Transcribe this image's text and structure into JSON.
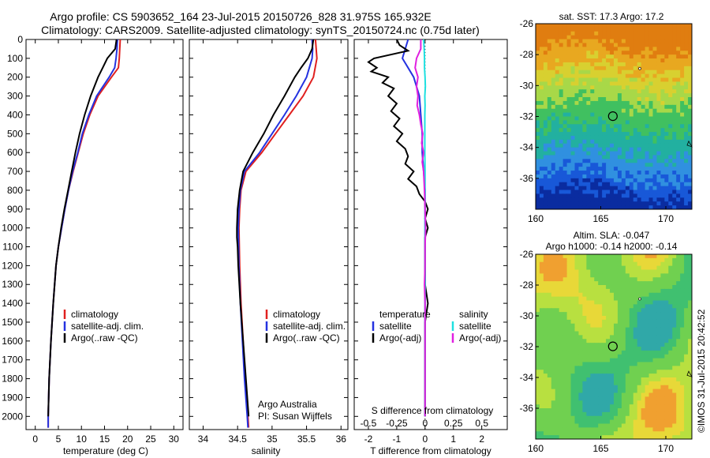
{
  "header": {
    "line1": "Argo profile: CS 5903652_164 23-Jul-2015 20150726_828 31.975S 165.932E",
    "line2": "Climatology: CARS2009. Satellite-adjusted climatology: synTS_20150724.nc (0.75d later)"
  },
  "credit": "©IMOS 31-Jul-2015 20:42:52",
  "colors": {
    "climatology": "#e0201f",
    "satellite": "#2432e0",
    "argo": "#000000",
    "sal_satellite": "#1ee0e0",
    "sal_argo": "#e020e0"
  },
  "chart_data": [
    {
      "type": "line",
      "id": "temperature-profile",
      "xlabel": "temperature (deg C)",
      "xticks": [
        0,
        5,
        10,
        15,
        20,
        25,
        30
      ],
      "xlim": [
        -2,
        32
      ],
      "yticks": [
        0,
        100,
        200,
        300,
        400,
        500,
        600,
        700,
        800,
        900,
        1000,
        1100,
        1200,
        1300,
        1400,
        1500,
        1600,
        1700,
        1800,
        1900,
        2000
      ],
      "ylim": [
        0,
        2070
      ],
      "y_reversed": true,
      "legend": [
        "climatology",
        "satellite-adj. clim.",
        "Argo(..raw -QC)"
      ],
      "series": [
        {
          "name": "climatology",
          "depth": [
            0,
            50,
            100,
            150,
            200,
            300,
            400,
            500,
            600,
            700,
            800,
            900,
            1000,
            1100,
            1200,
            1400,
            1600,
            1800,
            2000,
            2060
          ],
          "values": [
            18.4,
            18.3,
            18.2,
            18.0,
            16.5,
            13.6,
            11.8,
            10.4,
            9.3,
            8.2,
            7.2,
            6.4,
            5.7,
            5.0,
            4.5,
            3.9,
            3.4,
            3.0,
            2.8,
            2.8
          ]
        },
        {
          "name": "satellite-adj. clim.",
          "depth": [
            0,
            50,
            100,
            150,
            200,
            300,
            400,
            500,
            600,
            700,
            800,
            900,
            1000,
            1100,
            1200,
            1400,
            1600,
            1800,
            2000,
            2060
          ],
          "values": [
            17.8,
            17.7,
            17.5,
            17.2,
            16.0,
            13.3,
            11.6,
            10.2,
            9.2,
            8.1,
            7.2,
            6.4,
            5.7,
            5.0,
            4.5,
            3.9,
            3.4,
            3.0,
            2.8,
            2.8
          ]
        },
        {
          "name": "Argo(..raw -QC)",
          "depth": [
            0,
            50,
            100,
            150,
            200,
            300,
            400,
            500,
            600,
            700,
            800,
            900,
            1000,
            1100,
            1200,
            1400,
            1600,
            1800,
            2000
          ],
          "values": [
            17.6,
            17.3,
            15.6,
            14.6,
            13.6,
            12.0,
            10.7,
            9.6,
            8.7,
            7.9,
            7.1,
            6.3,
            5.6,
            5.0,
            4.5,
            3.9,
            3.4,
            3.0,
            2.8
          ]
        }
      ]
    },
    {
      "type": "line",
      "id": "salinity-profile",
      "xlabel": "salinity",
      "xticks": [
        34,
        34.5,
        35,
        35.5,
        36
      ],
      "xlim": [
        33.8,
        36.1
      ],
      "yticks": [
        0,
        100,
        200,
        300,
        400,
        500,
        600,
        700,
        800,
        900,
        1000,
        1100,
        1200,
        1300,
        1400,
        1500,
        1600,
        1700,
        1800,
        1900,
        2000
      ],
      "ylim": [
        0,
        2070
      ],
      "y_reversed": true,
      "legend": [
        "climatology",
        "satellite-adj. clim.",
        "Argo(..raw -QC)"
      ],
      "annotation": [
        "Argo Australia",
        "PI: Susan Wijffels"
      ],
      "series": [
        {
          "name": "climatology",
          "depth": [
            0,
            50,
            100,
            200,
            300,
            400,
            500,
            600,
            700,
            800,
            900,
            1000,
            1200,
            1400,
            1600,
            1800,
            2000,
            2060
          ],
          "values": [
            35.63,
            35.64,
            35.65,
            35.6,
            35.45,
            35.25,
            35.05,
            34.85,
            34.62,
            34.55,
            34.53,
            34.52,
            34.53,
            34.55,
            34.58,
            34.61,
            34.65,
            34.66
          ]
        },
        {
          "name": "satellite-adj. clim.",
          "depth": [
            0,
            50,
            100,
            200,
            300,
            400,
            500,
            600,
            700,
            800,
            900,
            1000,
            1200,
            1400,
            1600,
            1800,
            2000,
            2060
          ],
          "values": [
            35.58,
            35.59,
            35.58,
            35.5,
            35.35,
            35.18,
            35.0,
            34.82,
            34.6,
            34.54,
            34.52,
            34.51,
            34.52,
            34.54,
            34.57,
            34.6,
            34.64,
            34.65
          ]
        },
        {
          "name": "Argo(..raw -QC)",
          "depth": [
            0,
            50,
            100,
            150,
            200,
            300,
            400,
            500,
            600,
            700,
            800,
            900,
            1000,
            1050,
            1100,
            1200,
            1400,
            1600,
            1800,
            2000
          ],
          "values": [
            35.6,
            35.58,
            35.52,
            35.42,
            35.33,
            35.18,
            35.02,
            34.88,
            34.72,
            34.58,
            34.53,
            34.5,
            34.49,
            34.49,
            34.5,
            34.51,
            34.54,
            34.58,
            34.62,
            34.66
          ]
        }
      ]
    },
    {
      "type": "line",
      "id": "difference-profile",
      "xlabel": "T difference from climatology",
      "xlabel2": "S difference from climatology",
      "xticks": [
        -2,
        -1,
        0,
        1,
        2
      ],
      "xticks_top": [
        -0.5,
        -0.25,
        0,
        0.25,
        0.5
      ],
      "xlim": [
        -2.5,
        2.9
      ],
      "yticks": [
        0,
        100,
        200,
        300,
        400,
        500,
        600,
        700,
        800,
        900,
        1000,
        1100,
        1200,
        1300,
        1400,
        1500,
        1600,
        1700,
        1800,
        1900,
        2000
      ],
      "ylim": [
        0,
        2070
      ],
      "y_reversed": true,
      "legend_title_temperature": "temperature",
      "legend_title_salinity": "salinity",
      "legend": [
        "satellite",
        "Argo(-adj)",
        "satellite",
        "Argo(-adj)"
      ],
      "series": [
        {
          "name": "satellite",
          "depth": [
            0,
            50,
            100,
            150,
            200,
            300,
            400,
            500,
            600,
            700,
            800,
            900,
            1000,
            1200,
            1400,
            1600,
            1800,
            2000
          ],
          "values": [
            -0.6,
            -0.7,
            -0.8,
            -0.6,
            -0.4,
            -0.2,
            -0.15,
            -0.1,
            -0.1,
            -0.05,
            0,
            0,
            0,
            0,
            0,
            0,
            0,
            0
          ]
        },
        {
          "name": "Argo(-adj)",
          "depth": [
            0,
            30,
            60,
            100,
            120,
            150,
            170,
            200,
            230,
            260,
            300,
            340,
            380,
            420,
            460,
            500,
            540,
            580,
            620,
            660,
            700,
            740,
            780,
            820,
            860,
            900,
            950,
            1000,
            1050,
            1100,
            1200,
            1300,
            1400,
            1500,
            1600,
            1800,
            2000
          ],
          "values": [
            -1.0,
            -0.9,
            -0.6,
            -1.8,
            -2.0,
            -1.7,
            -1.9,
            -1.3,
            -1.5,
            -1.1,
            -1.3,
            -1.0,
            -1.2,
            -0.9,
            -1.1,
            -0.8,
            -1.0,
            -0.7,
            -0.6,
            -0.7,
            -0.4,
            -0.6,
            -0.3,
            -0.2,
            0,
            0.1,
            0,
            0.1,
            0,
            0,
            0,
            0,
            0.1,
            0,
            0,
            0,
            0
          ]
        },
        {
          "name": "satellite (salinity)",
          "depth": [
            0,
            50,
            100,
            150,
            200,
            250,
            300,
            350,
            400,
            450,
            500,
            600,
            700,
            800,
            900,
            1000,
            1200,
            1400,
            1600,
            1800,
            2000
          ],
          "values": [
            -0.05,
            -0.03,
            -0.02,
            -0.02,
            0,
            0.01,
            -0.01,
            0,
            -0.01,
            -0.01,
            -0.01,
            -0.01,
            0,
            0,
            0,
            0,
            0,
            0,
            0,
            0,
            0
          ]
        },
        {
          "name": "Argo(-adj) (salinity)",
          "depth": [
            0,
            50,
            100,
            150,
            200,
            250,
            300,
            350,
            400,
            450,
            500,
            550,
            600,
            650,
            700,
            800,
            900,
            1000,
            1100,
            1200,
            1300,
            1400,
            1600,
            1800,
            2000
          ],
          "values": [
            -0.15,
            -0.15,
            -0.3,
            -0.35,
            -0.25,
            -0.3,
            -0.25,
            -0.28,
            -0.2,
            -0.15,
            -0.08,
            -0.12,
            -0.05,
            -0.1,
            -0.05,
            -0.02,
            0,
            0.02,
            0,
            0,
            -0.02,
            0,
            0,
            0,
            0
          ]
        }
      ]
    },
    {
      "type": "heatmap",
      "id": "sst-map",
      "title": "sat. SST: 17.3 Argo: 17.2",
      "xticks": [
        160,
        165,
        170
      ],
      "yticks": [
        -26,
        -28,
        -30,
        -32,
        -34,
        -36
      ],
      "xlim": [
        160,
        172
      ],
      "ylim": [
        -38,
        -26
      ],
      "argo_position": [
        165.93,
        -31.98
      ]
    },
    {
      "type": "heatmap",
      "id": "sla-map",
      "title": "Altim. SLA: -0.047",
      "subtitle": "Argo h1000: -0.14 h2000: -0.14",
      "xticks": [
        160,
        165,
        170
      ],
      "yticks": [
        -26,
        -28,
        -30,
        -32,
        -34,
        -36
      ],
      "xlim": [
        160,
        172
      ],
      "ylim": [
        -38,
        -26
      ],
      "argo_position": [
        165.93,
        -31.98
      ]
    }
  ]
}
